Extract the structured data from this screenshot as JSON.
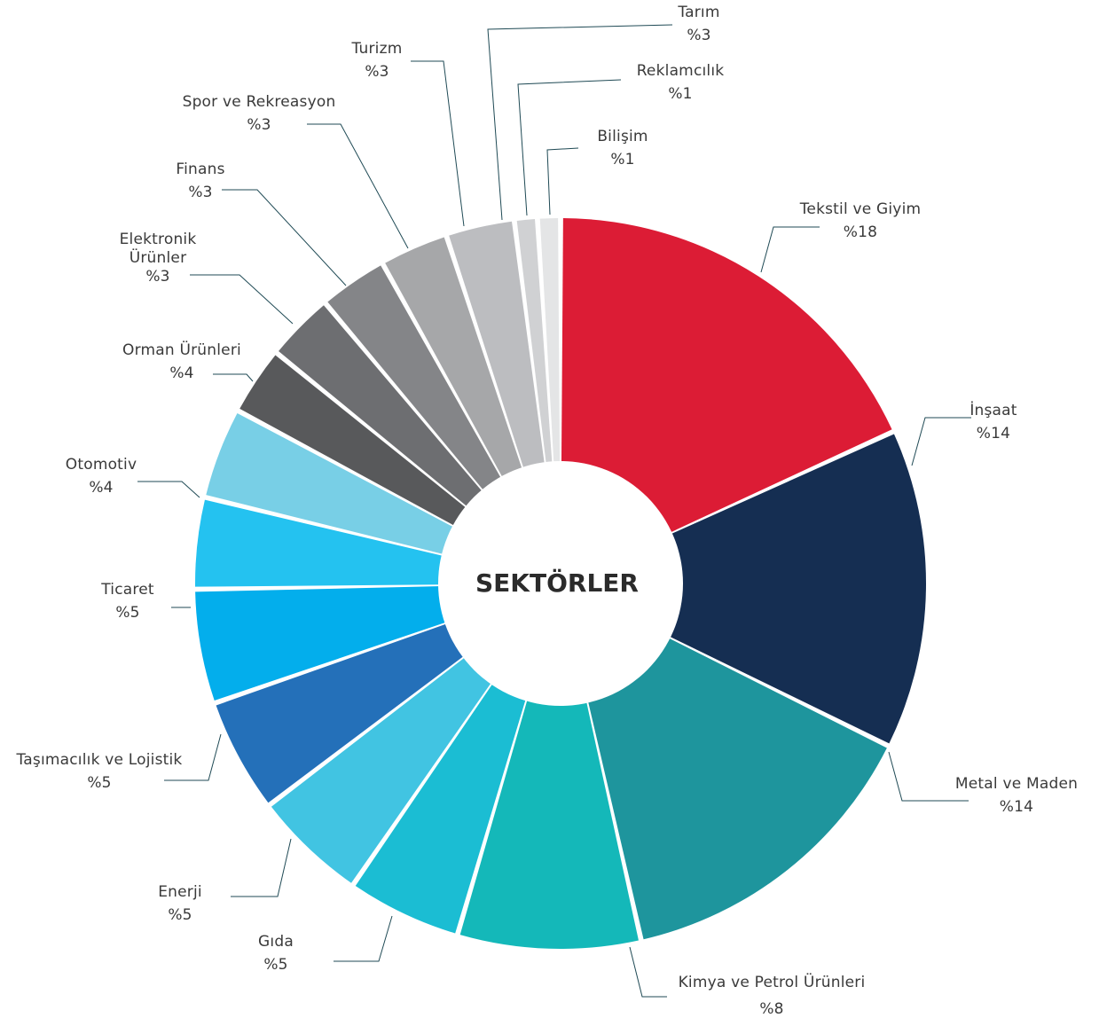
{
  "chart_data": {
    "type": "pie",
    "title": "SEKTÖRLER",
    "categories": [
      "Tekstil ve Giyim",
      "İnşaat",
      "Metal ve Maden",
      "Kimya  ve Petrol Ürünleri",
      "Gıda",
      "Enerji",
      "Taşımacılık ve Lojistik",
      "Ticaret",
      "Otomotiv",
      "Orman Ürünleri",
      "Elektronik Ürünler",
      "Finans",
      "Spor ve  Rekreasyon",
      "Turizm",
      "Tarım",
      "Reklamcılık",
      "Bilişim"
    ],
    "values": [
      18,
      14,
      14,
      8,
      5,
      5,
      5,
      5,
      4,
      4,
      3,
      3,
      3,
      3,
      3,
      1,
      1
    ],
    "slices": [
      {
        "name": "Tekstil ve Giyim",
        "label_lines": [
          "Tekstil ve Giyim"
        ],
        "pct_label": "%18",
        "value": 18,
        "color": "#dc1c35"
      },
      {
        "name": "İnşaat",
        "label_lines": [
          "İnşaat"
        ],
        "pct_label": "%14",
        "value": 14,
        "color": "#152e52"
      },
      {
        "name": "Metal ve Maden",
        "label_lines": [
          "Metal ve Maden"
        ],
        "pct_label": "%14",
        "value": 14,
        "color": "#1e959d"
      },
      {
        "name": "Kimya  ve Petrol Ürünleri",
        "label_lines": [
          "Kimya  ve Petrol Ürünleri"
        ],
        "pct_label": "%8",
        "value": 8,
        "color": "#14b8b9"
      },
      {
        "name": "Gıda",
        "label_lines": [
          "Gıda"
        ],
        "pct_label": "%5",
        "value": 5,
        "color": "#1bbdd3"
      },
      {
        "name": "Enerji",
        "label_lines": [
          "Enerji"
        ],
        "pct_label": "%5",
        "value": 5,
        "color": "#41c4e2"
      },
      {
        "name": "Taşımacılık ve Lojistik",
        "label_lines": [
          "Taşımacılık ve Lojistik"
        ],
        "pct_label": "%5",
        "value": 5,
        "color": "#2470b9"
      },
      {
        "name": "Ticaret",
        "label_lines": [
          "Ticaret"
        ],
        "pct_label": "%5",
        "value": 5,
        "color": "#03aeec"
      },
      {
        "name": "Otomotiv",
        "label_lines": [
          "Otomotiv"
        ],
        "pct_label": "%4",
        "value": 4,
        "color": "#24c2f0"
      },
      {
        "name": "Orman Ürünleri",
        "label_lines": [
          "Orman Ürünleri"
        ],
        "pct_label": "%4",
        "value": 4,
        "color": "#78cfe6"
      },
      {
        "name": "Elektronik Ürünler",
        "label_lines": [
          "Elektronik",
          "Ürünler"
        ],
        "pct_label": "%3",
        "value": 3,
        "color": "#58595b"
      },
      {
        "name": "Finans",
        "label_lines": [
          "Finans"
        ],
        "pct_label": "%3",
        "value": 3,
        "color": "#6d6e71"
      },
      {
        "name": "Spor ve  Rekreasyon",
        "label_lines": [
          "Spor ve  Rekreasyon"
        ],
        "pct_label": "%3",
        "value": 3,
        "color": "#848588"
      },
      {
        "name": "Turizm",
        "label_lines": [
          "Turizm"
        ],
        "pct_label": "%3",
        "value": 3,
        "color": "#a6a7a9"
      },
      {
        "name": "Tarım",
        "label_lines": [
          "Tarım"
        ],
        "pct_label": "%3",
        "value": 3,
        "color": "#bcbdc0"
      },
      {
        "name": "Reklamcılık",
        "label_lines": [
          "Reklamcılık"
        ],
        "pct_label": "%1",
        "value": 1,
        "color": "#d0d1d3"
      },
      {
        "name": "Bilişim",
        "label_lines": [
          "Bilişim"
        ],
        "pct_label": "%1",
        "value": 1,
        "color": "#e4e5e6"
      }
    ],
    "legend": "none"
  }
}
